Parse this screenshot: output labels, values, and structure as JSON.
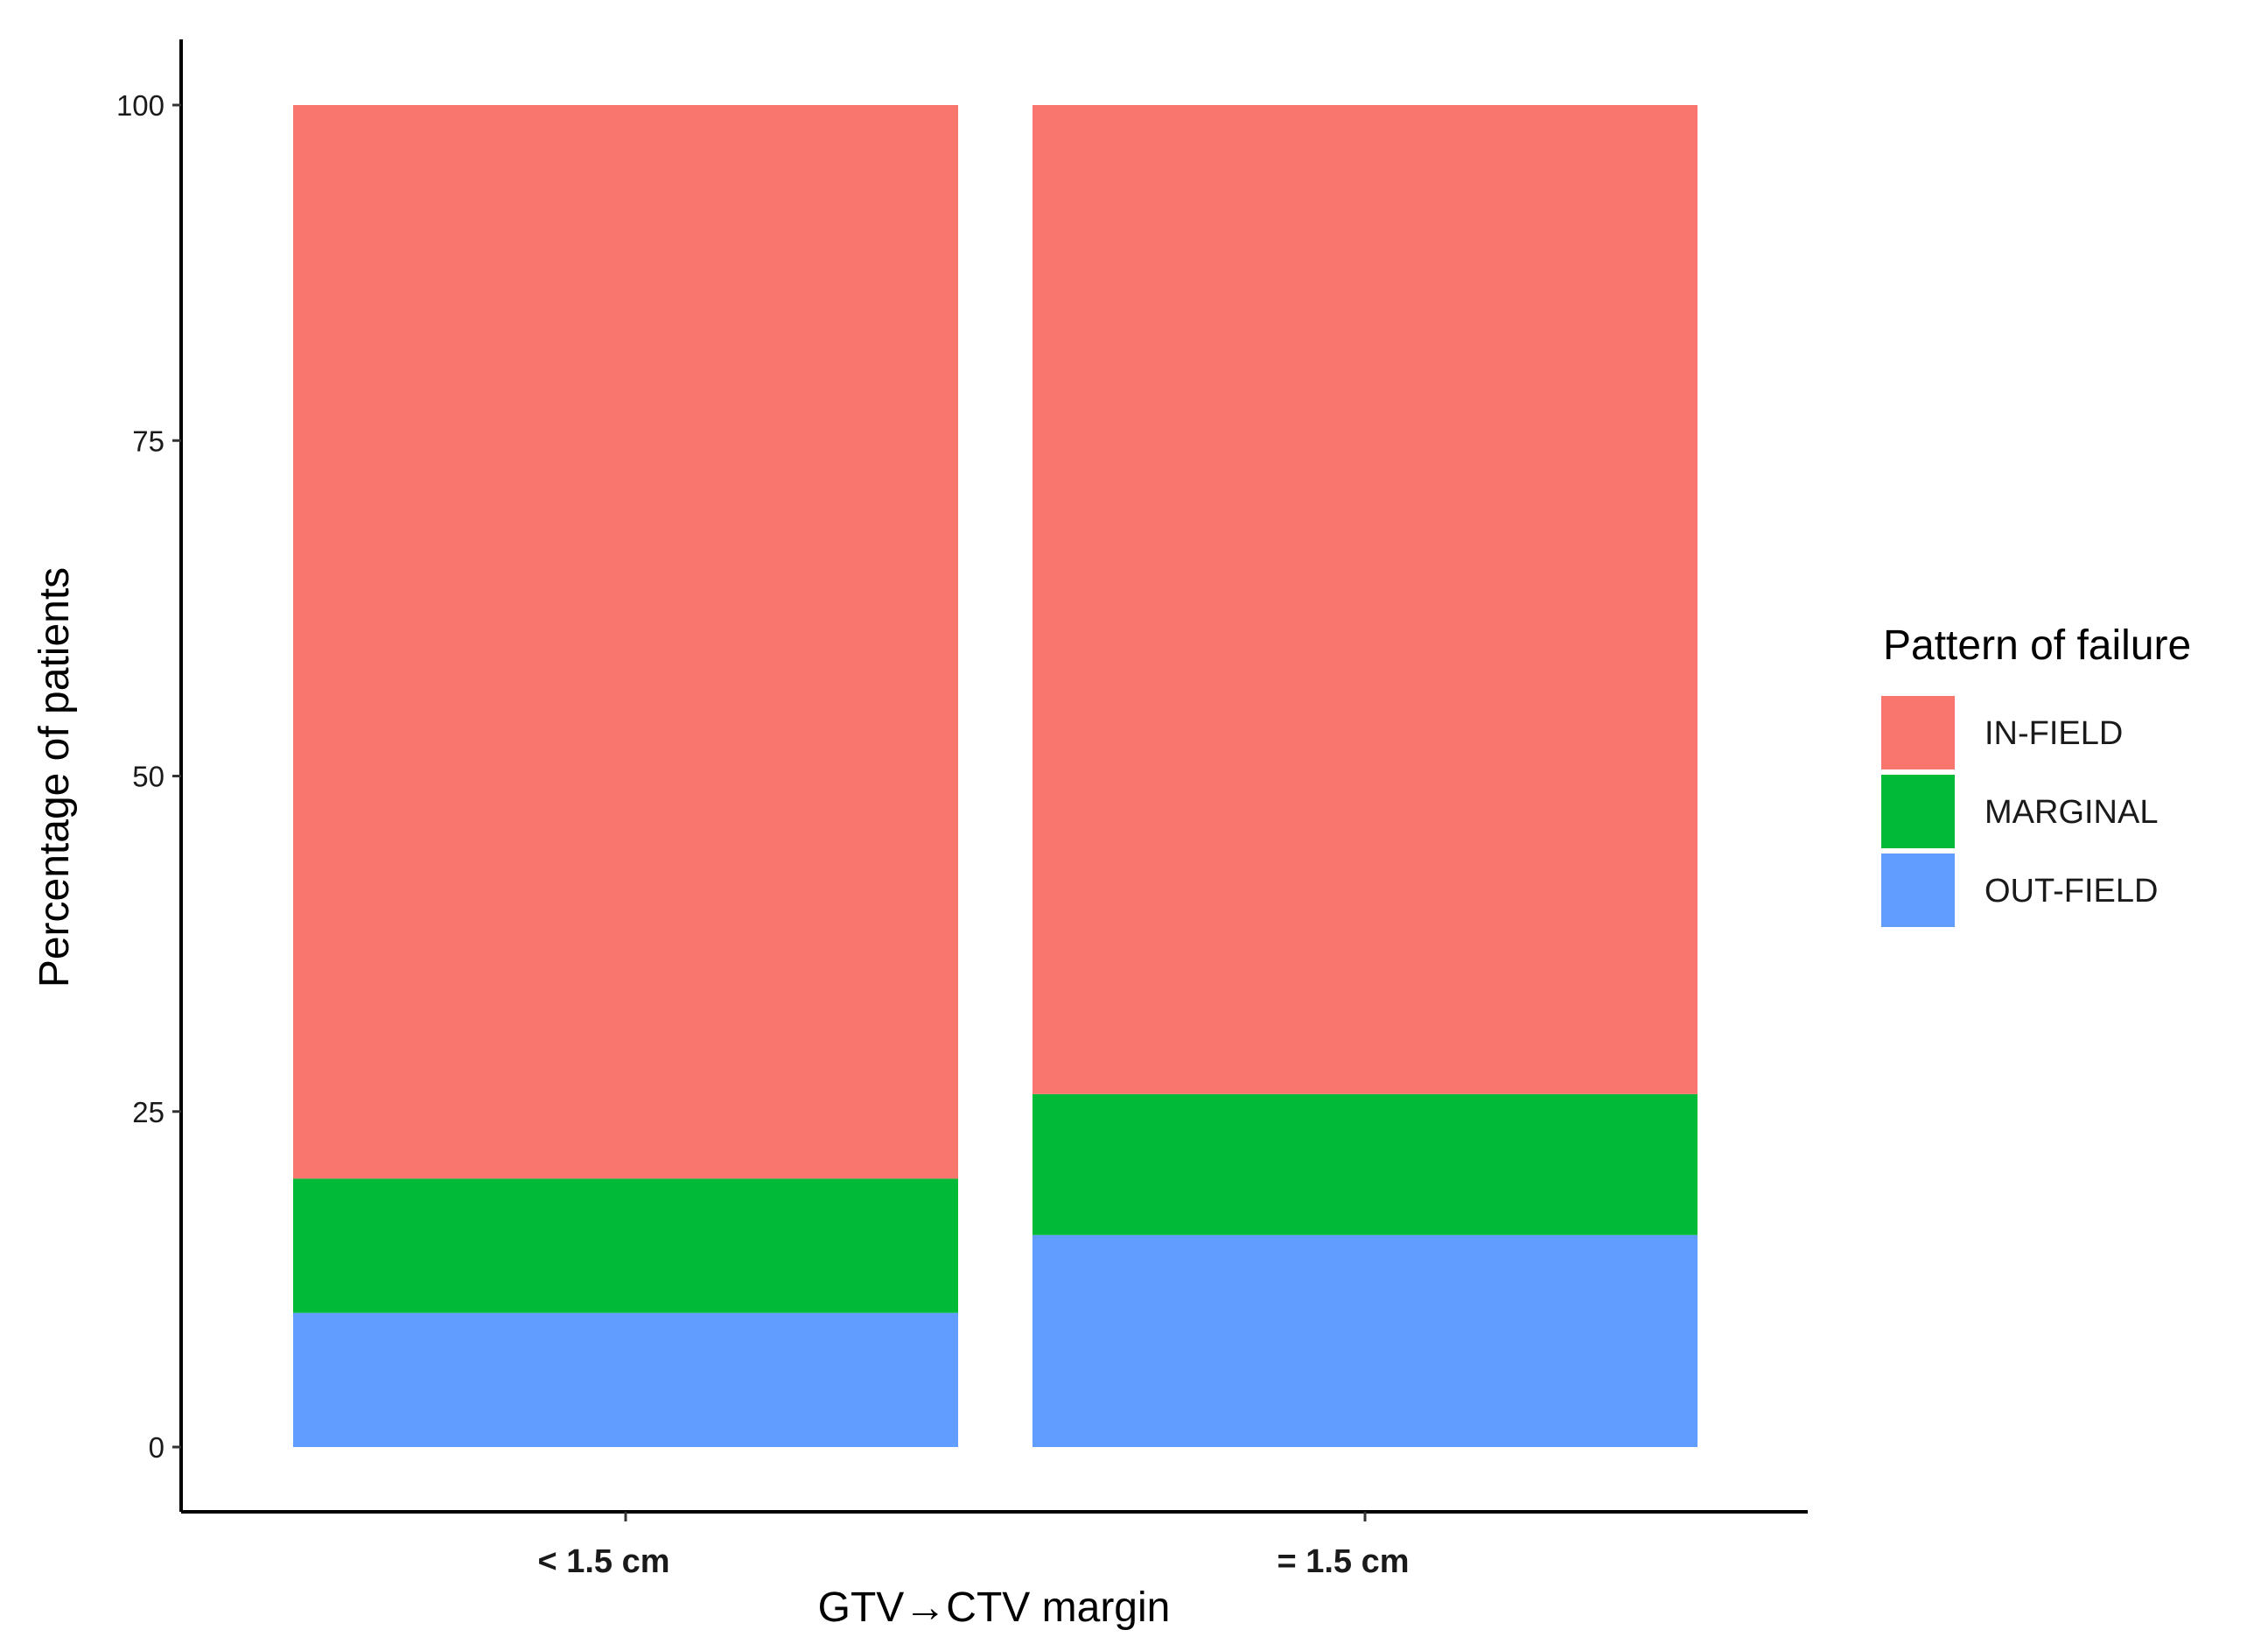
{
  "chart_data": {
    "type": "bar",
    "stacked": true,
    "categories": [
      "< 1.5 cm",
      "= 1.5 cm"
    ],
    "series": [
      {
        "name": "OUT-FIELD",
        "color": "#619CFF",
        "values": [
          10.0,
          15.8
        ]
      },
      {
        "name": "MARGINAL",
        "color": "#00BA38",
        "values": [
          10.0,
          10.5
        ]
      },
      {
        "name": "IN-FIELD",
        "color": "#F8766D",
        "values": [
          80.0,
          73.7
        ]
      }
    ],
    "legend_order": [
      "IN-FIELD",
      "MARGINAL",
      "OUT-FIELD"
    ],
    "xlabel": "GTV→CTV margin",
    "ylabel": "Percentage of patients",
    "yticks": [
      0,
      25,
      50,
      75,
      100
    ],
    "ylim": [
      0,
      100
    ],
    "grid": false,
    "legend": {
      "title": "Pattern of failure",
      "placement": "right"
    }
  }
}
